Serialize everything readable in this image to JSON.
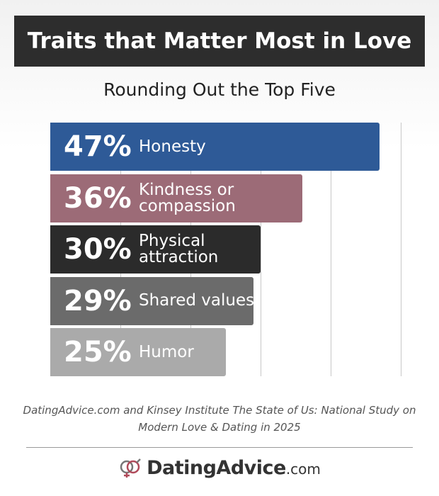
{
  "chart_data": {
    "type": "bar",
    "orientation": "horizontal",
    "title": "Traits that Matter Most in Love",
    "subtitle": "Rounding Out the Top Five",
    "categories": [
      "Honesty",
      "Kindness or compassion",
      "Physical attraction",
      "Shared values",
      "Humor"
    ],
    "values": [
      47,
      36,
      30,
      29,
      25
    ],
    "value_labels": [
      "47%",
      "36%",
      "30%",
      "29%",
      "25%"
    ],
    "colors": [
      "#2e5a97",
      "#9c6b77",
      "#2b2b2b",
      "#6b6b6b",
      "#aaaaaa"
    ],
    "xlim": [
      0,
      50
    ],
    "xticks": [
      10,
      20,
      30,
      40,
      50
    ],
    "grid": true,
    "source": "DatingAdvice.com and Kinsey Institute The State of Us: National Study on Modern Love & Dating in 2025",
    "brand": "DatingAdvice",
    "brand_suffix": ".com"
  }
}
